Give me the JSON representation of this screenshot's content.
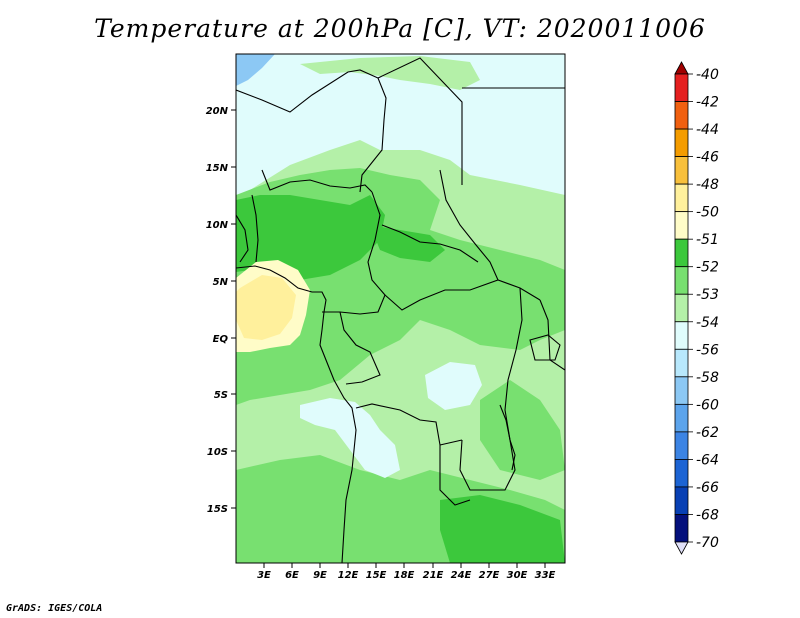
{
  "title": "Temperature at 200hPa [C], VT: 2020011006",
  "credit": "GrADS: IGES/COLA",
  "map": {
    "lat_ticks": [
      "20N",
      "15N",
      "10N",
      "5N",
      "EQ",
      "5S",
      "10S",
      "15S"
    ],
    "lon_ticks": [
      "3E",
      "6E",
      "9E",
      "12E",
      "15E",
      "18E",
      "21E",
      "24E",
      "27E",
      "30E",
      "33E"
    ]
  },
  "colorbar": {
    "labels": [
      "-40",
      "-42",
      "-44",
      "-46",
      "-48",
      "-50",
      "-51",
      "-52",
      "-53",
      "-54",
      "-56",
      "-58",
      "-60",
      "-62",
      "-64",
      "-66",
      "-68",
      "-70"
    ],
    "colors": [
      "#a00000",
      "#e52020",
      "#f06010",
      "#f49c00",
      "#f8c03c",
      "#fff09c",
      "#fffcc8",
      "#3cc83c",
      "#78e070",
      "#b4f0a8",
      "#e0fcfc",
      "#b8e8fc",
      "#8cc8f4",
      "#5ca4ec",
      "#3c84e4",
      "#1c64d4",
      "#0840b4",
      "#04107c",
      "#e0e0f8"
    ]
  }
}
